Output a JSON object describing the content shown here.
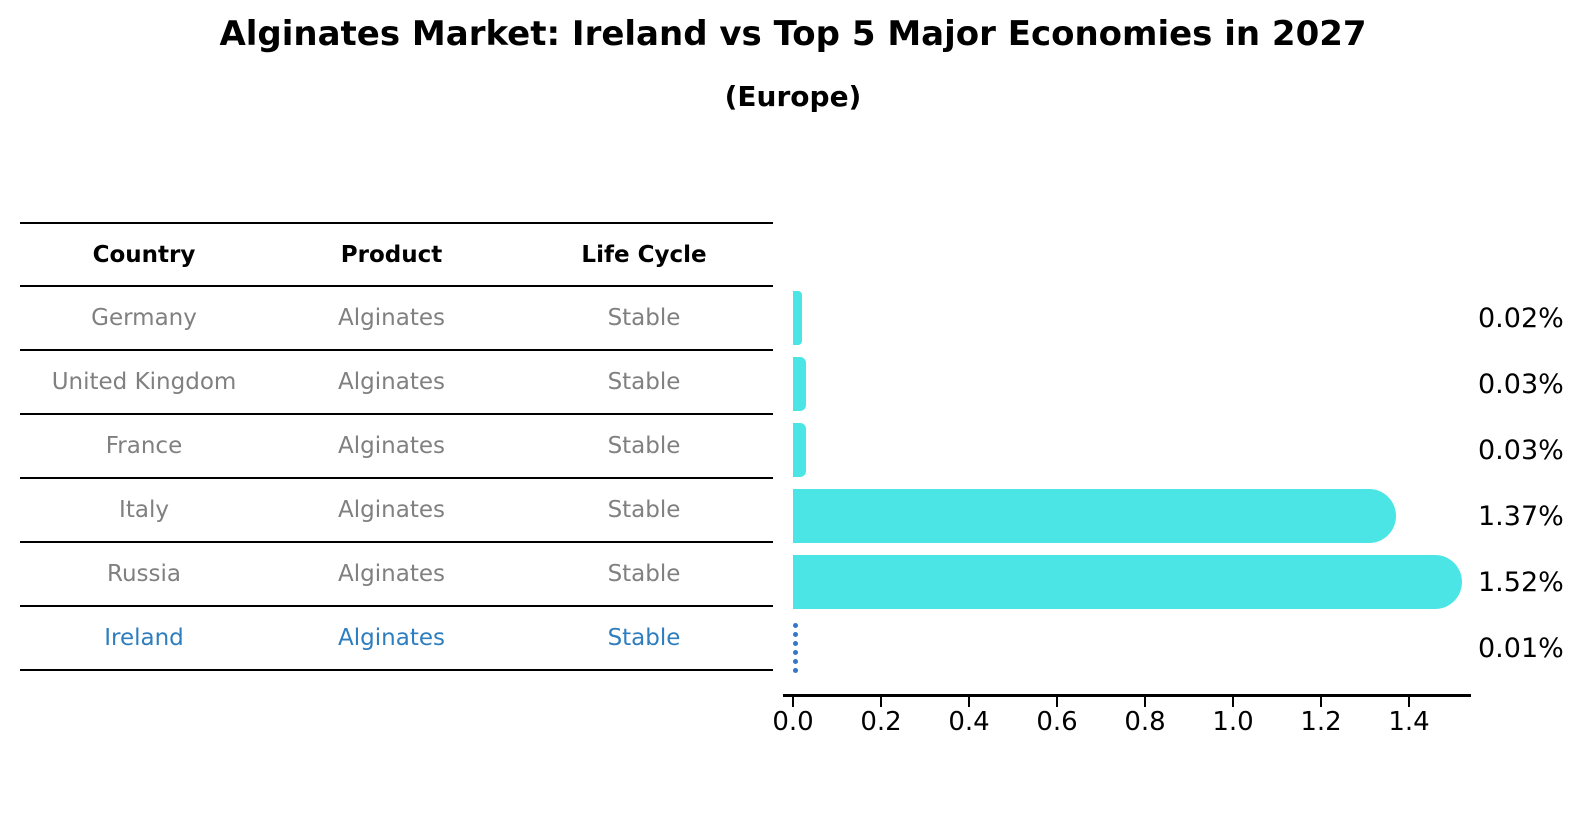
{
  "header": {
    "title": "Alginates Market: Ireland vs Top 5 Major Economies in 2027",
    "subtitle": "(Europe)"
  },
  "table": {
    "headers": [
      "Country",
      "Product",
      "Life Cycle"
    ],
    "rows": [
      {
        "country": "Germany",
        "product": "Alginates",
        "life_cycle": "Stable"
      },
      {
        "country": "United Kingdom",
        "product": "Alginates",
        "life_cycle": "Stable"
      },
      {
        "country": "France",
        "product": "Alginates",
        "life_cycle": "Stable"
      },
      {
        "country": "Italy",
        "product": "Alginates",
        "life_cycle": "Stable"
      },
      {
        "country": "Russia",
        "product": "Alginates",
        "life_cycle": "Stable"
      },
      {
        "country": "Ireland",
        "product": "Alginates",
        "life_cycle": "Stable"
      }
    ]
  },
  "chart_data": {
    "type": "bar",
    "orientation": "horizontal",
    "title": "Alginates Market: Ireland vs Top 5 Major Economies in 2027",
    "subtitle": "(Europe)",
    "categories": [
      "Germany",
      "United Kingdom",
      "France",
      "Italy",
      "Russia",
      "Ireland"
    ],
    "values": [
      0.02,
      0.03,
      0.03,
      1.37,
      1.52,
      0.01
    ],
    "value_labels": [
      "0.02%",
      "0.03%",
      "0.03%",
      "1.37%",
      "1.52%",
      "0.01%"
    ],
    "unit": "%",
    "xlabel": "",
    "ylabel": "",
    "xlim": [
      0,
      1.56
    ],
    "xticks": [
      0.0,
      0.2,
      0.4,
      0.6,
      0.8,
      1.0,
      1.2,
      1.4
    ],
    "xtick_labels": [
      "0.0",
      "0.2",
      "0.4",
      "0.6",
      "0.8",
      "1.0",
      "1.2",
      "1.4"
    ],
    "grid": false,
    "legend": false,
    "highlight_index": 5,
    "bar_color": "#4AE5E4",
    "highlight_bar_color": "#3377C8",
    "highlight_text_color": "#2E7EBF"
  }
}
